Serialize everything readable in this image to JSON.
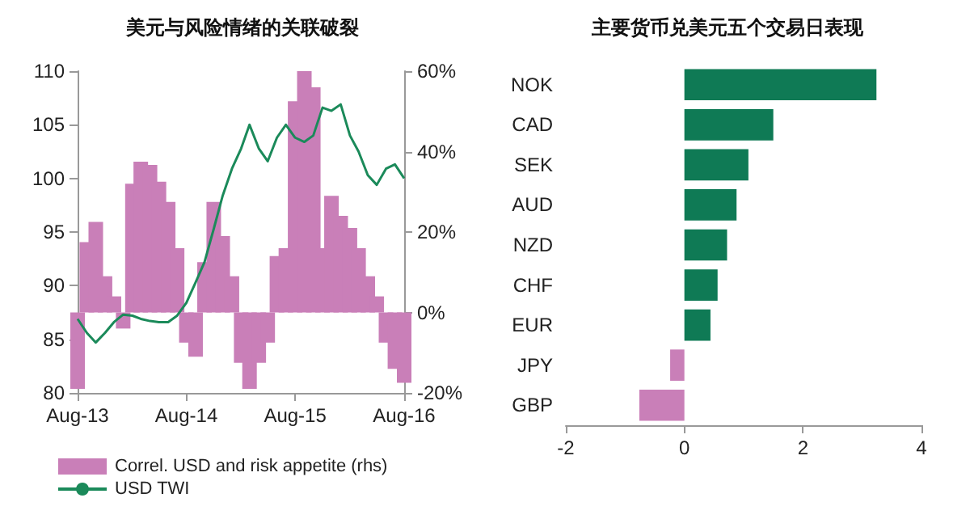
{
  "chart_data": [
    {
      "type": "line",
      "title": "美元与风险情绪的关联破裂",
      "x": [
        "2013-08",
        "2013-09",
        "2013-10",
        "2013-11",
        "2013-12",
        "2014-01",
        "2014-02",
        "2014-03",
        "2014-04",
        "2014-05",
        "2014-06",
        "2014-07",
        "2014-08",
        "2014-09",
        "2014-10",
        "2014-11",
        "2014-12",
        "2015-01",
        "2015-02",
        "2015-03",
        "2015-04",
        "2015-05",
        "2015-06",
        "2015-07",
        "2015-08",
        "2015-09",
        "2015-10",
        "2015-11",
        "2015-12",
        "2016-01",
        "2016-02",
        "2016-03",
        "2016-04",
        "2016-05",
        "2016-06",
        "2016-07",
        "2016-08"
      ],
      "series": [
        {
          "name": "Correl. USD and risk appetite (rhs)",
          "type": "bar",
          "axis": "y2",
          "color": "#c97fb8",
          "values": [
            -19,
            17.5,
            22.5,
            9,
            4,
            -4,
            32,
            37.5,
            36.7,
            32.5,
            27.5,
            16,
            -7.5,
            -11,
            12.5,
            27.5,
            19,
            9,
            -12.5,
            -19,
            -12.5,
            -7.5,
            14,
            16,
            52.5,
            60,
            56,
            16,
            29,
            24,
            21,
            16,
            9,
            4,
            -7.5,
            -14,
            -17.5
          ]
        },
        {
          "name": "USD TWI",
          "type": "line",
          "color": "#1b8a5a",
          "values": [
            86.9,
            85.6,
            84.7,
            85.6,
            86.6,
            87.3,
            87.2,
            86.9,
            86.7,
            86.6,
            86.6,
            87.2,
            88.4,
            90.3,
            92.2,
            95.3,
            98.4,
            100.9,
            102.8,
            105,
            102.8,
            101.6,
            103.8,
            105,
            103.8,
            103.4,
            104,
            106.6,
            106.3,
            106.9,
            104,
            102.5,
            100.3,
            99.4,
            100.9,
            101.3,
            100
          ]
        }
      ],
      "xlim": [
        "2013-08",
        "2016-08"
      ],
      "xticks": [
        {
          "value": "2013-08",
          "label": "Aug-13"
        },
        {
          "value": "2014-08",
          "label": "Aug-14"
        },
        {
          "value": "2015-08",
          "label": "Aug-15"
        },
        {
          "value": "2016-08",
          "label": "Aug-16"
        }
      ],
      "ylim": [
        80,
        110
      ],
      "yticks": [
        80,
        85,
        90,
        95,
        100,
        105,
        110
      ],
      "y2lim": [
        -20,
        60
      ],
      "y2ticks": [
        {
          "value": -20,
          "label": "-20%"
        },
        {
          "value": 0,
          "label": "0%"
        },
        {
          "value": 20,
          "label": "20%"
        },
        {
          "value": 40,
          "label": "40%"
        },
        {
          "value": 60,
          "label": "60%"
        }
      ],
      "legend": "bottom",
      "grid": false,
      "marker": "none"
    },
    {
      "type": "bar",
      "title": "主要货币兑美元五个交易日表现",
      "orientation": "horizontal",
      "categories": [
        "NOK",
        "CAD",
        "SEK",
        "AUD",
        "NZD",
        "CHF",
        "EUR",
        "JPY",
        "GBP"
      ],
      "values": [
        3.24,
        1.5,
        1.08,
        0.88,
        0.72,
        0.56,
        0.44,
        -0.24,
        -0.76
      ],
      "colors": [
        "#0f7a55",
        "#0f7a55",
        "#0f7a55",
        "#0f7a55",
        "#0f7a55",
        "#0f7a55",
        "#0f7a55",
        "#c97fb8",
        "#c97fb8"
      ],
      "xlim": [
        -2,
        4
      ],
      "xticks": [
        -2,
        0,
        2,
        4
      ],
      "grid": false,
      "legend": false
    }
  ]
}
